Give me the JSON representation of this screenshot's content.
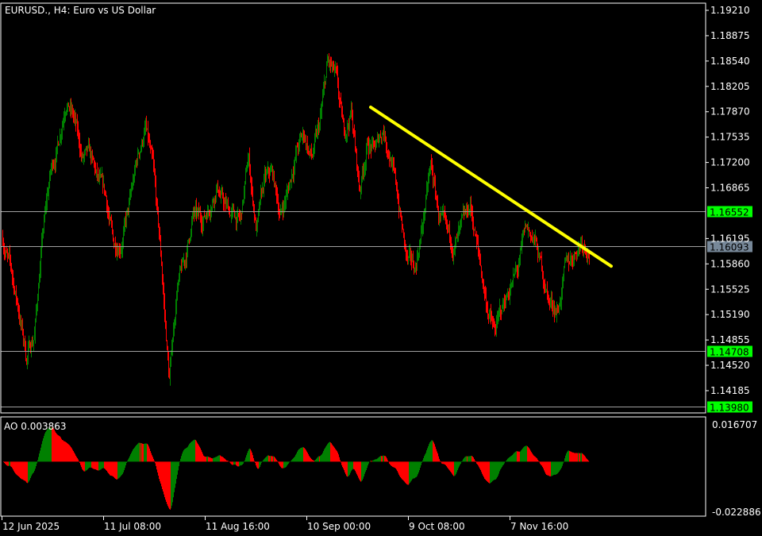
{
  "title": "EURUSD., H4:  Euro vs US Dollar",
  "indicator_label": "AO 0.003863",
  "colors": {
    "background": "#000000",
    "bull": "#008000",
    "bear": "#ff0000",
    "trendline": "#ffff00",
    "level_tag": "#00ff00",
    "bid_tag": "#778899",
    "grid_line": "#a0a0a0"
  },
  "chart_data": {
    "type": "candlestick",
    "symbol": "EURUSD.",
    "timeframe": "H4",
    "ylim": [
      1.1398,
      1.1921
    ],
    "y_ticks": [
      "1.19210",
      "1.18875",
      "1.18540",
      "1.18205",
      "1.17870",
      "1.17535",
      "1.17200",
      "1.16865",
      "1.16195",
      "1.15860",
      "1.15525",
      "1.15190",
      "1.14855",
      "1.14520",
      "1.14185"
    ],
    "x_ticks": [
      "12 Jun 2025",
      "11 Jul 08:00",
      "11 Aug 16:00",
      "10 Sep 00:00",
      "9 Oct 08:00",
      "7 Nov 16:00"
    ],
    "approx_close_path": [
      1.162,
      1.1578,
      1.1526,
      1.1463,
      1.1494,
      1.162,
      1.1704,
      1.1746,
      1.1809,
      1.1777,
      1.1725,
      1.1725,
      1.1693,
      1.1672,
      1.1609,
      1.162,
      1.1662,
      1.1725,
      1.1767,
      1.1704,
      1.1588,
      1.1431,
      1.1557,
      1.1588,
      1.1651,
      1.1641,
      1.1662,
      1.1693,
      1.1662,
      1.1651,
      1.1641,
      1.1725,
      1.163,
      1.1693,
      1.1704,
      1.1651,
      1.1683,
      1.1735,
      1.1756,
      1.1725,
      1.1767,
      1.1851,
      1.183,
      1.1756,
      1.1788,
      1.1683,
      1.1746,
      1.1735,
      1.1767,
      1.1725,
      1.1662,
      1.1588,
      1.1578,
      1.1641,
      1.1714,
      1.1651,
      1.162,
      1.1609,
      1.163,
      1.1662,
      1.1599,
      1.1536,
      1.1494,
      1.1526,
      1.1557,
      1.1578,
      1.163,
      1.162,
      1.1578,
      1.1536,
      1.1526,
      1.1578,
      1.1599,
      1.162,
      1.1609
    ],
    "levels": [
      {
        "price": "1.16552",
        "kind": "level"
      },
      {
        "price": "1.16093",
        "kind": "bid"
      },
      {
        "price": "1.14708",
        "kind": "level"
      },
      {
        "price": "1.13980",
        "kind": "level"
      }
    ],
    "trendline": {
      "start_price": 1.1793,
      "end_price": 1.1583
    },
    "indicator": {
      "name": "AO",
      "value": 0.003863,
      "ylim": [
        -0.022886,
        0.016707
      ],
      "y_ticks": [
        "0.016707",
        "-0.022886"
      ]
    }
  }
}
